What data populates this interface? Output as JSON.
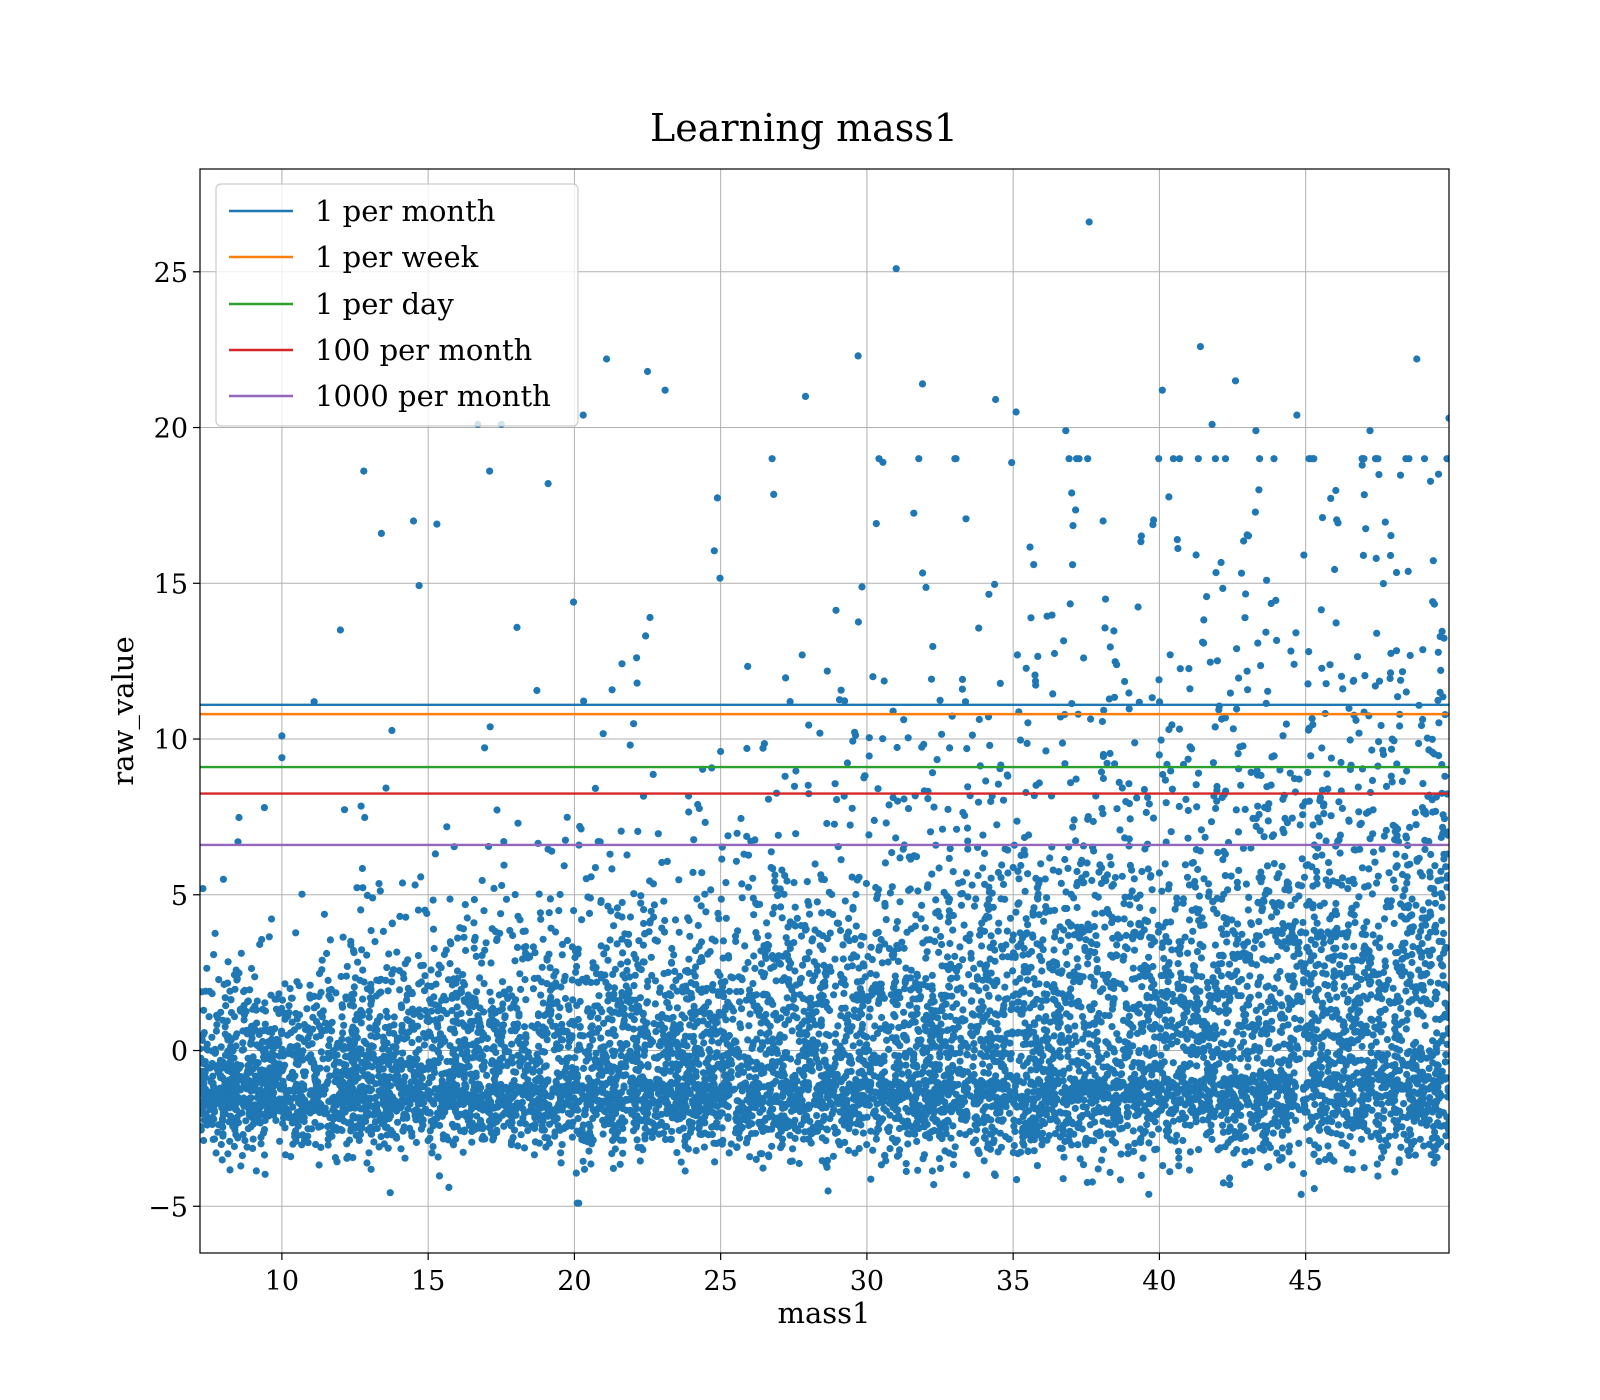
{
  "chart_data": {
    "type": "scatter",
    "title": "Learning mass1",
    "xlabel": "mass1",
    "ylabel": "raw_value",
    "xlim": [
      7.2,
      49.9
    ],
    "ylim": [
      -6.5,
      28.3
    ],
    "xticks": [
      10,
      15,
      20,
      25,
      30,
      35,
      40,
      45
    ],
    "yticks": [
      -5,
      0,
      5,
      10,
      15,
      20,
      25
    ],
    "ytick_labels": [
      "−5",
      "0",
      "5",
      "10",
      "15",
      "20",
      "25"
    ],
    "grid": true,
    "legend_position": "top-left",
    "scatter_color": "#1f77b4",
    "scatter_series": {
      "points": [
        [
          37.6,
          26.6
        ],
        [
          31.0,
          25.1
        ],
        [
          41.4,
          22.6
        ],
        [
          48.8,
          22.2
        ],
        [
          21.1,
          22.2
        ],
        [
          29.7,
          22.3
        ],
        [
          22.5,
          21.8
        ],
        [
          42.6,
          21.5
        ],
        [
          23.1,
          21.2
        ],
        [
          31.9,
          21.4
        ],
        [
          40.1,
          21.2
        ],
        [
          34.4,
          20.9
        ],
        [
          27.9,
          21.0
        ],
        [
          20.3,
          20.4
        ],
        [
          44.7,
          20.4
        ],
        [
          49.9,
          20.3
        ],
        [
          35.1,
          20.5
        ],
        [
          12.8,
          18.6
        ],
        [
          17.1,
          18.6
        ],
        [
          19.1,
          18.2
        ],
        [
          16.7,
          20.1
        ],
        [
          17.5,
          20.1
        ],
        [
          8.5,
          6.7
        ],
        [
          9.4,
          7.8
        ],
        [
          7.3,
          5.2
        ],
        [
          10.0,
          10.1
        ],
        [
          10.0,
          9.4
        ],
        [
          11.1,
          11.2
        ],
        [
          12.0,
          13.5
        ],
        [
          14.5,
          17.0
        ],
        [
          15.3,
          16.9
        ],
        [
          13.4,
          16.6
        ],
        [
          13.1,
          4.9
        ],
        [
          20.1,
          -4.9
        ],
        [
          37.0,
          17.9
        ],
        [
          43.4,
          18.0
        ],
        [
          47.2,
          19.9
        ],
        [
          41.8,
          20.1
        ],
        [
          43.3,
          19.9
        ],
        [
          36.8,
          19.9
        ]
      ]
    },
    "series": [
      {
        "name": "1 per month",
        "y": 11.1,
        "color": "#1f77b4"
      },
      {
        "name": "1 per week",
        "y": 10.8,
        "color": "#ff7f0e"
      },
      {
        "name": "1 per day",
        "y": 9.1,
        "color": "#2ca02c"
      },
      {
        "name": "100 per month",
        "y": 8.25,
        "color": "#d62728"
      },
      {
        "name": "1000 per month",
        "y": 6.6,
        "color": "#9467bd"
      }
    ]
  }
}
